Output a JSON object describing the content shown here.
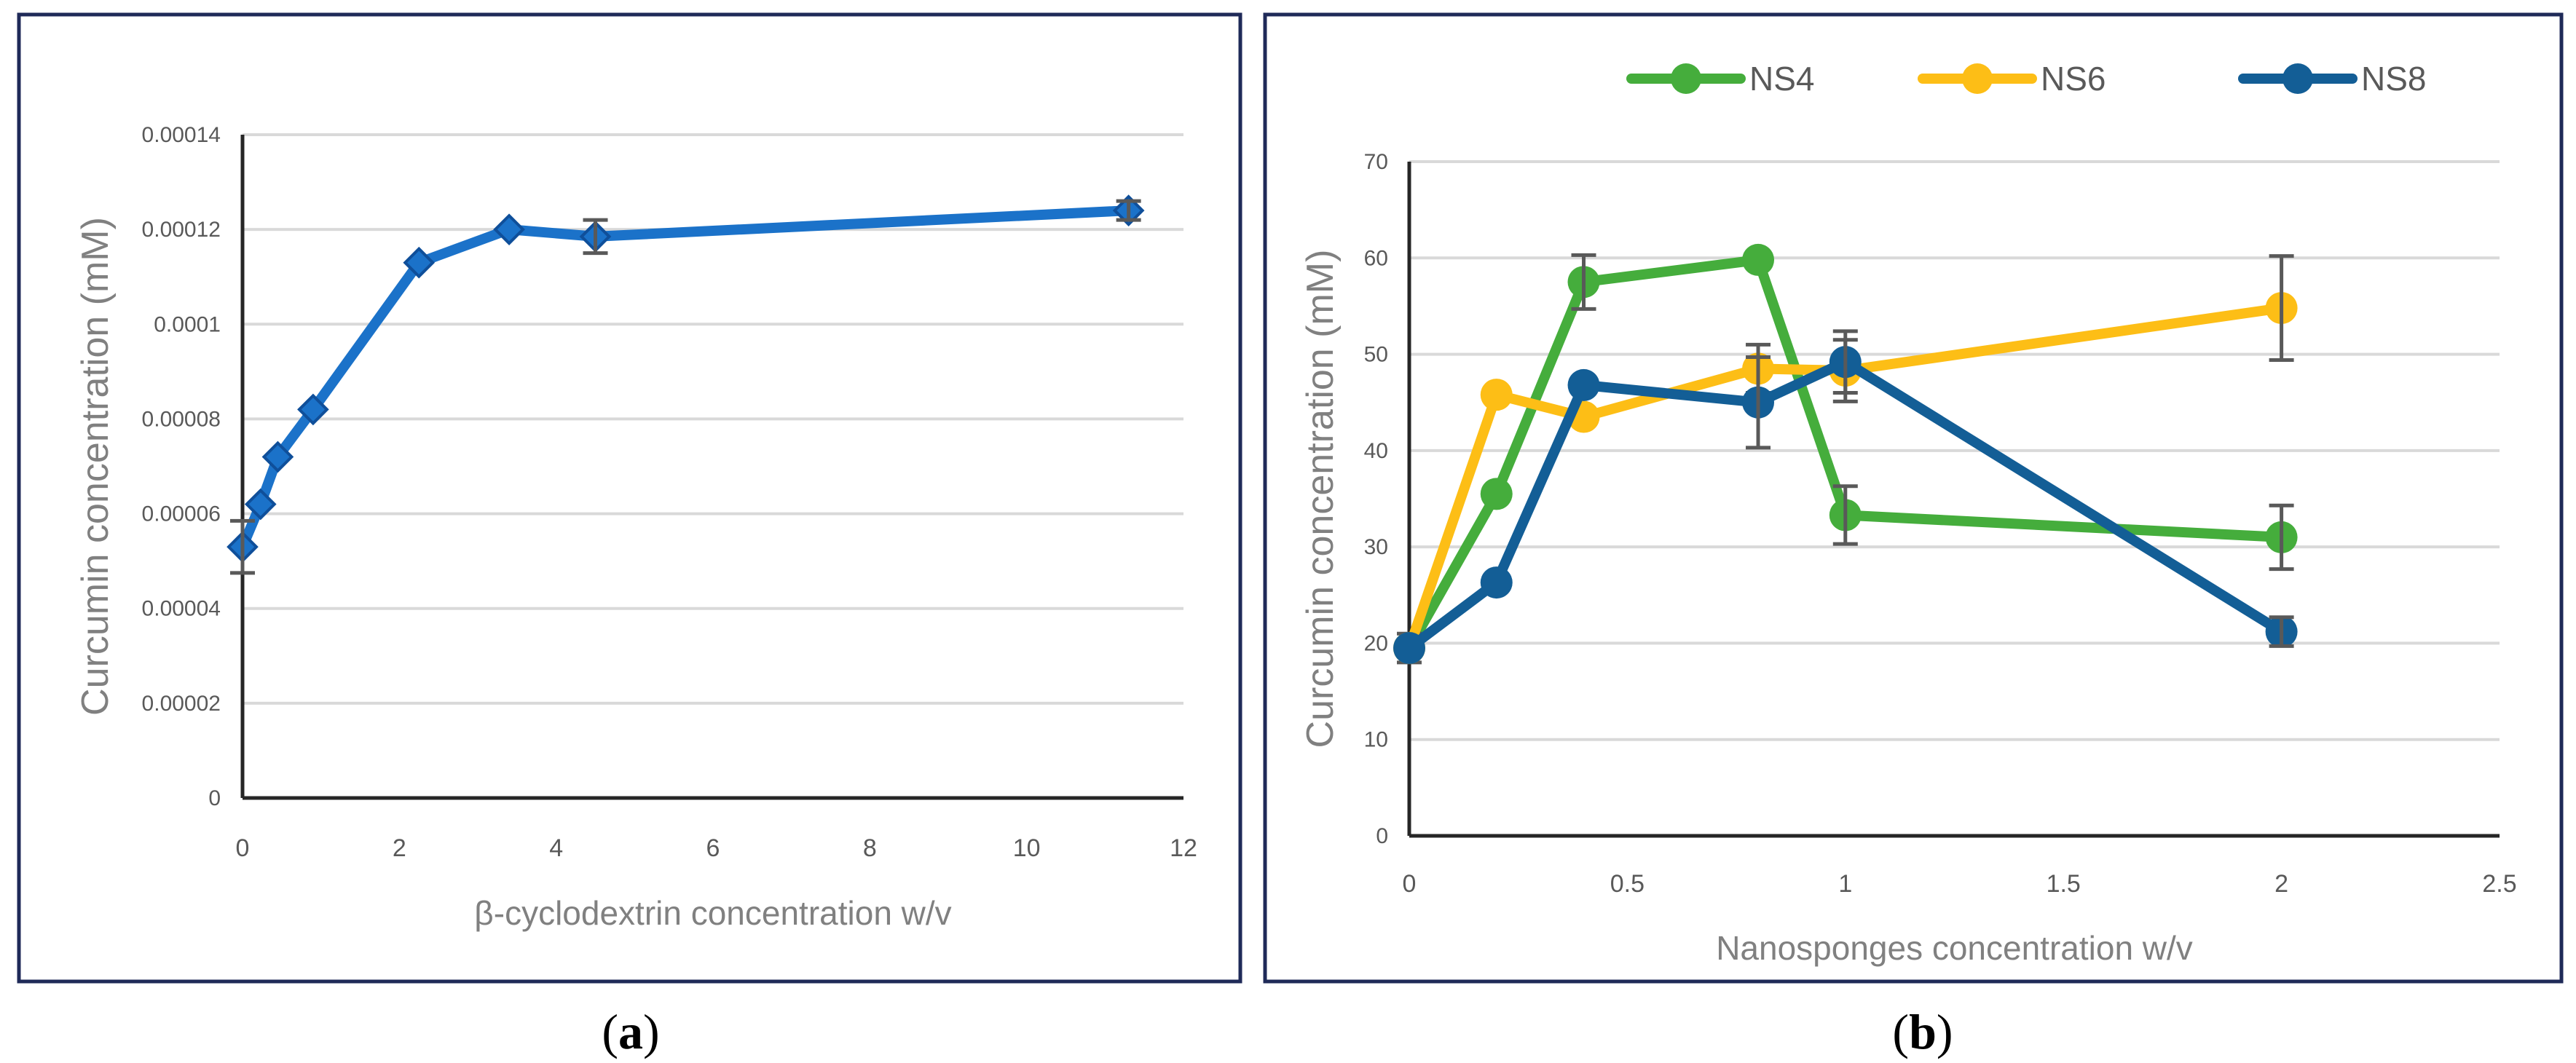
{
  "chart_data": [
    {
      "panel": "a",
      "caption_letter": "a",
      "type": "line",
      "title": "",
      "xlabel": "β-cyclodextrin  concentration w/v",
      "ylabel": "Curcumin concentration (mM)",
      "xlim": [
        0,
        12
      ],
      "ylim": [
        0,
        0.00014
      ],
      "xticks": [
        0,
        2,
        4,
        6,
        8,
        10,
        12
      ],
      "xtick_labels": [
        "0",
        "2",
        "4",
        "6",
        "8",
        "10",
        "12"
      ],
      "yticks": [
        0,
        2e-05,
        4e-05,
        6e-05,
        8e-05,
        0.0001,
        0.00012,
        0.00014
      ],
      "ytick_labels": [
        "0",
        "0.00002",
        "0.00004",
        "0.00006",
        "0.00008",
        "0.0001",
        "0.00012",
        "0.00014"
      ],
      "grid": "horizontal",
      "color": "#1b72c9",
      "series": [
        {
          "name": "β-cyclodextrin",
          "x": [
            0,
            0.23,
            0.45,
            0.9,
            2.25,
            3.4,
            4.5,
            11.3
          ],
          "y": [
            5.3e-05,
            6.2e-05,
            7.2e-05,
            8.2e-05,
            0.000113,
            0.00012,
            0.0001185,
            0.000124
          ],
          "err": [
            5.5e-06,
            0,
            0,
            0,
            0,
            0,
            3.5e-06,
            2e-06
          ]
        }
      ]
    },
    {
      "panel": "b",
      "caption_letter": "b",
      "type": "line",
      "title": "",
      "xlabel": "Nanosponges concentration  w/v",
      "ylabel": "Curcumin concentration (mM)",
      "xlim": [
        0,
        2.5
      ],
      "ylim": [
        0,
        70
      ],
      "xticks": [
        0,
        0.5,
        1,
        1.5,
        2,
        2.5
      ],
      "xtick_labels": [
        "0",
        "0.5",
        "1",
        "1.5",
        "2",
        "2.5"
      ],
      "yticks": [
        0,
        10,
        20,
        30,
        40,
        50,
        60,
        70
      ],
      "ytick_labels": [
        "0",
        "10",
        "20",
        "30",
        "40",
        "50",
        "60",
        "70"
      ],
      "grid": "horizontal",
      "legend_position": "top",
      "series": [
        {
          "name": "NS4",
          "color": "#45ad3c",
          "x": [
            0,
            0.2,
            0.4,
            0.8,
            1,
            2
          ],
          "y": [
            19.5,
            35.5,
            57.5,
            59.8,
            33.3,
            31
          ],
          "err": [
            1.5,
            0,
            2.8,
            0,
            3,
            3.3
          ]
        },
        {
          "name": "NS6",
          "color": "#fdbe16",
          "x": [
            0,
            0.2,
            0.4,
            0.8,
            1,
            2
          ],
          "y": [
            19.5,
            45.8,
            43.5,
            48.5,
            48.3,
            54.8
          ],
          "err": [
            0,
            0,
            0,
            2.5,
            3.2,
            5.4
          ]
        },
        {
          "name": "NS8",
          "color": "#135e96",
          "x": [
            0,
            0.2,
            0.4,
            0.8,
            1,
            2
          ],
          "y": [
            19.5,
            26.3,
            46.8,
            45,
            49.2,
            21.2
          ],
          "err": [
            0,
            0,
            0,
            4.7,
            3.2,
            1.5
          ]
        }
      ]
    }
  ]
}
